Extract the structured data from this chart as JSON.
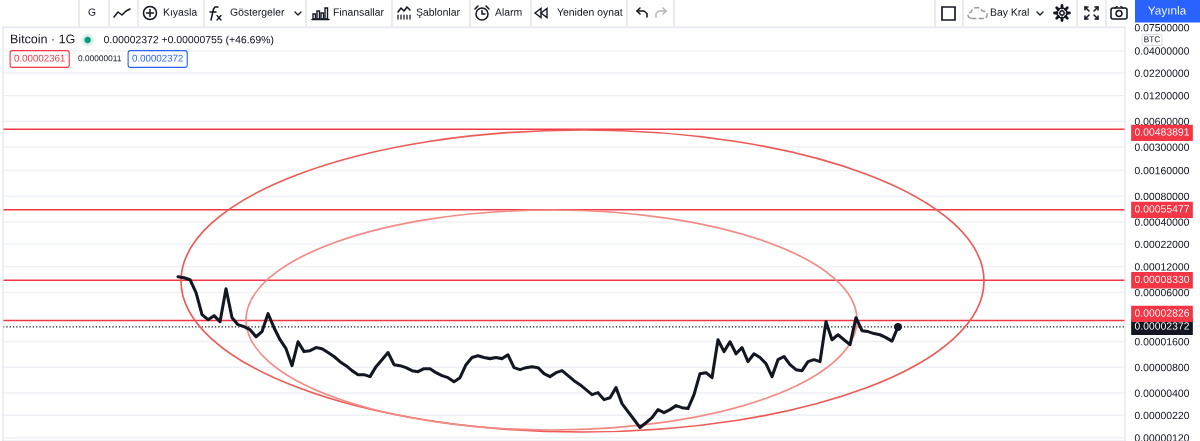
{
  "chart_data": {
    "type": "line",
    "title": "Bitcoin · 1G",
    "subtitle": "0.00002372 +0.00000755 (+46.69%)",
    "annotations": [
      "G",
      "Kıyasla",
      "Göstergeler",
      "Finansallar",
      "Şablonlar",
      "Alarm",
      "Yeniden oynat",
      "Bay Kral",
      "Yayınla",
      "BTC",
      "0.00002361",
      "0.00000011",
      "0.00002372"
    ],
    "categories": [
      null,
      null,
      null,
      null,
      null,
      null,
      null,
      null,
      null,
      null,
      null,
      null,
      null,
      null,
      null,
      null,
      null,
      null,
      null,
      null,
      null,
      null,
      null,
      null,
      null,
      null,
      null,
      null,
      null,
      null,
      null,
      null,
      null,
      null,
      null,
      null,
      null,
      null,
      null,
      null,
      null,
      null,
      null,
      null,
      null,
      null,
      null,
      null,
      null,
      null,
      null,
      null,
      null,
      null,
      null,
      null,
      null,
      null,
      null,
      null,
      null,
      null,
      null,
      null,
      null,
      null,
      null,
      null,
      null,
      null,
      null,
      null,
      null,
      null,
      null,
      null,
      null,
      null,
      null,
      null,
      null,
      null,
      null,
      null,
      null,
      null,
      null,
      null,
      null,
      null,
      null,
      null,
      null,
      null,
      null,
      null,
      null,
      null,
      null,
      null,
      null,
      null,
      null,
      null,
      null,
      null,
      null,
      null,
      null,
      null,
      null,
      null,
      null,
      null,
      null,
      null,
      null,
      null,
      null,
      null,
      null
    ],
    "series": [
      {
        "color": "#131722",
        "values": [
          9.16e-05,
          8.91e-05,
          8.45e-05,
          5.96e-05,
          3.3e-05,
          2.88e-05,
          3.21e-05,
          2.73e-05,
          6.63e-05,
          3.04e-05,
          2.52e-05,
          2.39e-05,
          2.2e-05,
          1.82e-05,
          2.09e-05,
          3.39e-05,
          2.32e-05,
          1.68e-05,
          1.32e-05,
          8.36e-06,
          1.59e-05,
          1.22e-05,
          1.25e-05,
          1.36e-05,
          1.32e-05,
          1.19e-05,
          1.07e-05,
          9.31e-06,
          8.36e-06,
          7.31e-06,
          6.56e-06,
          6.56e-06,
          6.22e-06,
          8.14e-06,
          9.82e-06,
          1.19e-05,
          8.59e-06,
          8.36e-06,
          7.92e-06,
          7.31e-06,
          7.11e-06,
          7.71e-06,
          7.71e-06,
          6.92e-06,
          6.39e-06,
          6.05e-06,
          5.43e-06,
          6.05e-06,
          8.59e-06,
          1.04e-05,
          1.09e-05,
          1.04e-05,
          1.01e-05,
          1.04e-05,
          1.01e-05,
          1.12e-05,
          7.92e-06,
          7.51e-06,
          7.92e-06,
          8.14e-06,
          7.92e-06,
          6.74e-06,
          6.22e-06,
          6.92e-06,
          7.31e-06,
          6.39e-06,
          5.58e-06,
          5.01e-06,
          4.38e-06,
          3.83e-06,
          4.04e-06,
          3.35e-06,
          3.53e-06,
          4.63e-06,
          3.01e-06,
          2.42e-06,
          1.96e-06,
          1.58e-06,
          1.8e-06,
          2.06e-06,
          2.56e-06,
          2.36e-06,
          2.56e-06,
          2.85e-06,
          2.7e-06,
          2.63e-06,
          3.83e-06,
          6.74e-06,
          6.92e-06,
          6.05e-06,
          1.68e-05,
          1.22e-05,
          1.59e-05,
          1.15e-05,
          1.36e-05,
          9.31e-06,
          1.15e-05,
          1.04e-05,
          8.82e-06,
          6.22e-06,
          9.82e-06,
          1.07e-05,
          8.59e-06,
          7.51e-06,
          7.31e-06,
          9.31e-06,
          9.82e-06,
          9.31e-06,
          2.73e-05,
          1.68e-05,
          1.92e-05,
          1.68e-05,
          1.47e-05,
          3.04e-05,
          2.14e-05,
          2.09e-05,
          1.98e-05,
          1.92e-05,
          1.78e-05,
          1.62e-05,
          2.37e-05
        ]
      },
      {
        "type": "scatter",
        "color": "#131722",
        "values": [
          null,
          null,
          null,
          null,
          null,
          null,
          null,
          null,
          null,
          null,
          null,
          null,
          null,
          null,
          null,
          null,
          null,
          null,
          null,
          null,
          null,
          null,
          null,
          null,
          null,
          null,
          null,
          null,
          null,
          null,
          null,
          null,
          null,
          null,
          null,
          null,
          null,
          null,
          null,
          null,
          null,
          null,
          null,
          null,
          null,
          null,
          null,
          null,
          null,
          null,
          null,
          null,
          null,
          null,
          null,
          null,
          null,
          null,
          null,
          null,
          null,
          null,
          null,
          null,
          null,
          null,
          null,
          null,
          null,
          null,
          null,
          null,
          null,
          null,
          null,
          null,
          null,
          null,
          null,
          null,
          null,
          null,
          null,
          null,
          null,
          null,
          null,
          null,
          null,
          null,
          null,
          null,
          null,
          null,
          null,
          null,
          null,
          null,
          null,
          null,
          null,
          null,
          null,
          null,
          null,
          null,
          null,
          null,
          null,
          null,
          null,
          null,
          null,
          null,
          null,
          null,
          null,
          null,
          null,
          null,
          2.37e-05
        ]
      }
    ],
    "log": "y",
    "ylim": [
      1.1e-06,
      0.076
    ],
    "yticks": [
      {
        "value": 0.075,
        "label": "0.07500000"
      },
      {
        "value": 0.04,
        "label": "0.04000000"
      },
      {
        "value": 0.022,
        "label": "0.02200000"
      },
      {
        "value": 0.012,
        "label": "0.01200000"
      },
      {
        "value": 0.006,
        "label": "0.00600000"
      },
      {
        "value": 0.003,
        "label": "0.00300000"
      },
      {
        "value": 0.0016,
        "label": "0.00160000"
      },
      {
        "value": 0.0008,
        "label": "0.00080000"
      },
      {
        "value": 0.0004,
        "label": "0.00040000"
      },
      {
        "value": 0.00022,
        "label": "0.00022000"
      },
      {
        "value": 0.00012,
        "label": "0.00012000"
      },
      {
        "value": 6e-05,
        "label": "0.00006000"
      },
      {
        "value": 1.6e-05,
        "label": "0.00001600"
      },
      {
        "value": 8e-06,
        "label": "0.00000800"
      },
      {
        "value": 4e-06,
        "label": "0.00000400"
      },
      {
        "value": 2.2e-06,
        "label": "0.00000220"
      },
      {
        "value": 1.2e-06,
        "label": "0.00000120"
      }
    ],
    "tick_labels": "y",
    "grid": "y",
    "ref_lines": [
      {
        "axis": "y",
        "value": 0.00483891,
        "label": "0.00483891",
        "color": "#f23645"
      },
      {
        "axis": "y",
        "value": 0.00055477,
        "label": "0.00055477",
        "color": "#f23645"
      },
      {
        "axis": "y",
        "value": 8.33e-05,
        "label": "0.00008330",
        "color": "#f23645"
      },
      {
        "axis": "y",
        "value": 2.826e-05,
        "label": "0.00002826",
        "color": "#f23645"
      },
      {
        "axis": "y",
        "value": 2.372e-05,
        "label": "0.00002372",
        "color": "#131722",
        "line_style": "dotted"
      }
    ]
  }
}
